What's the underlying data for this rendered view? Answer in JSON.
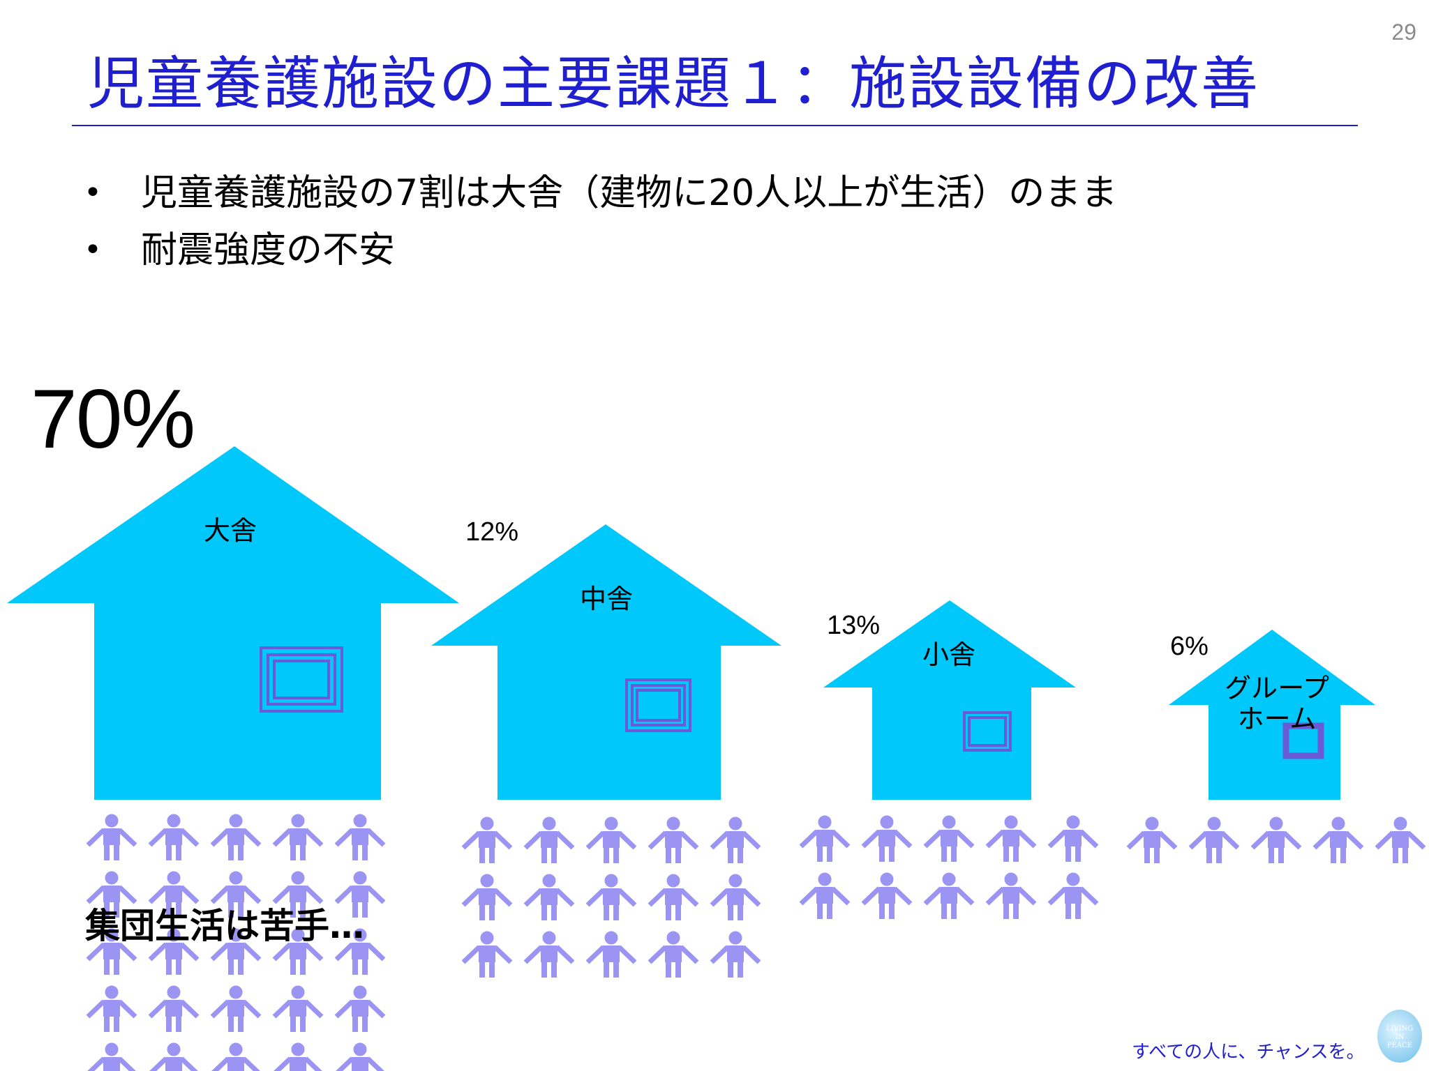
{
  "page_number": "29",
  "title": "児童養護施設の主要課題１：施設設備の改善",
  "bullets": [
    "児童養護施設の7割は大舎（建物に20人以上が生活）のまま",
    "耐震強度の不安"
  ],
  "bullet_symbol": "•",
  "houses": [
    {
      "name": "大舎",
      "percent": "70%",
      "people": 25
    },
    {
      "name": "中舎",
      "percent": "12%",
      "people": 15
    },
    {
      "name": "小舎",
      "percent": "13%",
      "people": 10
    },
    {
      "name_line1": "グループ",
      "name_line2": "ホーム",
      "percent": "6%",
      "people": 5
    }
  ],
  "caption": "集団生活は苦手…",
  "footer": "すべての人に、チャンスを。",
  "logo_text": [
    "LIVING",
    "IN",
    "PEACE"
  ],
  "colors": {
    "title": "#1f1fd0",
    "house": "#00c8fa",
    "window": "#6a5ad6",
    "person": "#9b94f2"
  },
  "icons": {
    "person": "person-icon",
    "window": "window-icon"
  }
}
